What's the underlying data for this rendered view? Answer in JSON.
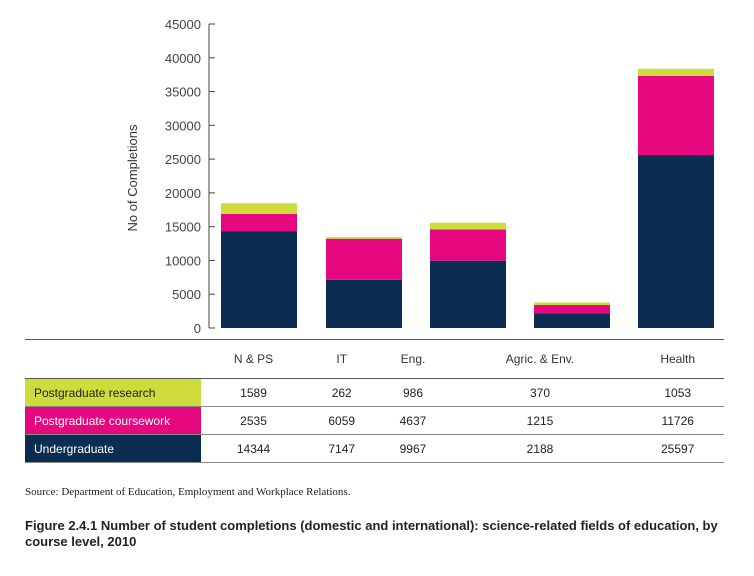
{
  "chart_data": {
    "type": "bar",
    "stacked": true,
    "categories": [
      "N & PS",
      "IT",
      "Eng.",
      "Agric. & Env.",
      "Health"
    ],
    "series": [
      {
        "name": "Undergraduate",
        "color": "#0b2d52",
        "text_color": "#ffffff",
        "values": [
          14344,
          7147,
          9967,
          2188,
          25597
        ]
      },
      {
        "name": "Postgraduate coursework",
        "color": "#e5087f",
        "text_color": "#ffffff",
        "values": [
          2535,
          6059,
          4637,
          1215,
          11726
        ]
      },
      {
        "name": "Postgraduate research",
        "color": "#cddc3a",
        "text_color": "#222222",
        "values": [
          1589,
          262,
          986,
          370,
          1053
        ]
      }
    ],
    "ylabel": "No of Completions",
    "ylim": [
      0,
      45000
    ],
    "yticks": [
      0,
      5000,
      10000,
      15000,
      20000,
      25000,
      30000,
      35000,
      40000,
      45000
    ],
    "table": {
      "rows": [
        {
          "name": "Postgraduate research",
          "values": [
            "1589",
            "262",
            "986",
            "370",
            "1053"
          ],
          "color": "#cddc3a",
          "text_color": "#222222"
        },
        {
          "name": "Postgraduate coursework",
          "values": [
            "2535",
            "6059",
            "4637",
            "1215",
            "11726"
          ],
          "color": "#e5087f",
          "text_color": "#ffffff"
        },
        {
          "name": "Undergraduate",
          "values": [
            "14344",
            "7147",
            "9967",
            "2188",
            "25597"
          ],
          "color": "#0b2d52",
          "text_color": "#ffffff"
        }
      ]
    },
    "source": "Source: Department of Education, Employment and Workplace Relations.",
    "caption": "Figure 2.4.1  Number of student completions (domestic and international): science-related fields of education, by course level, 2010"
  }
}
